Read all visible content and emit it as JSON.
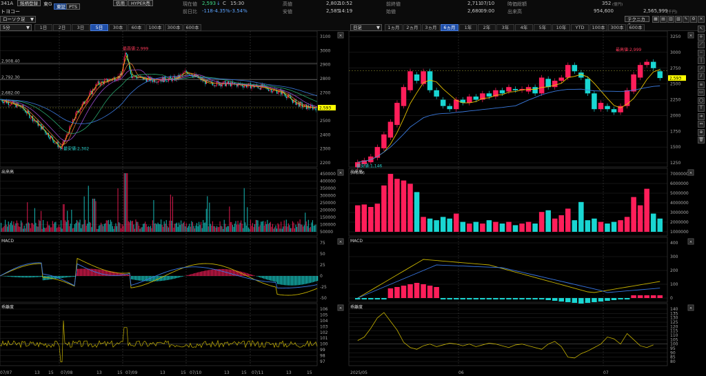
{
  "stock": {
    "code": "341A",
    "name": "トヨコー",
    "register_label": "銘柄登録",
    "market": "東G",
    "tag_blue": "東証",
    "pts_label": "PTS",
    "credit_label": "信用",
    "hyper_label": "HYPER売"
  },
  "quote": {
    "price_label": "現在値",
    "price": "2,593",
    "price_arrow": "↓",
    "c_label": "C",
    "time": "15:30",
    "change_label": "前日比",
    "change": "-118",
    "change_pct": "-4.35%",
    "change_pct2": "-3.54%",
    "high_label": "高値",
    "high": "2,802",
    "high_time": "10:52",
    "low_label": "安値",
    "low": "2,585",
    "low_time": "14:19",
    "prev_label": "前終値",
    "prev": "2,711",
    "prev_date": "07/10",
    "open_label": "始値",
    "open": "2,680",
    "open_time": "09:00",
    "mcap_label": "時価総額",
    "mcap": "352",
    "mcap_unit": "(億円)",
    "vol_label": "出来高",
    "vol": "954,600",
    "value_label": "",
    "value": "2,565,999",
    "value_unit": "(千円)",
    "tech_label": "テクニカル"
  },
  "left_panel": {
    "chart_type": "ローソク足",
    "interval": "5分",
    "tabs": [
      "1日",
      "2日",
      "3日",
      "5日",
      "30本",
      "60本",
      "100本",
      "300本",
      "600本"
    ],
    "active_tab": "5日",
    "price_panel": {
      "ticks": [
        "3100",
        "3000",
        "2900",
        "2800",
        "2700",
        "2600",
        "2500",
        "2400",
        "2300",
        "2200"
      ],
      "left_levels": [
        "2,908.40",
        "2,792.30",
        "2,682.00"
      ],
      "high_marker": "最高値:2,999",
      "low_marker": "最安値:2,302",
      "current": "2,593"
    },
    "volume_panel": {
      "title": "出来高",
      "ticks": [
        "450000",
        "400000",
        "350000",
        "300000",
        "250000",
        "200000",
        "150000",
        "100000",
        "50000"
      ]
    },
    "macd_panel": {
      "title": "MACD",
      "ticks": [
        "75",
        "50",
        "25",
        "0",
        "-25",
        "-50"
      ]
    },
    "rsi_panel": {
      "title": "乖離度",
      "ticks": [
        "106",
        "105",
        "104",
        "103",
        "102",
        "101",
        "100",
        "99",
        "98",
        "97"
      ]
    },
    "x_labels": [
      "07/07",
      "13",
      "15",
      "07/08",
      "13",
      "15",
      "07/09",
      "13",
      "15",
      "07/10",
      "13",
      "15",
      "07/11",
      "13",
      "15"
    ]
  },
  "right_panel": {
    "chart_type": "日足",
    "tabs": [
      "1ヵ月",
      "2ヵ月",
      "3ヵ月",
      "6ヵ月",
      "1年",
      "2年",
      "3年",
      "4年",
      "5年",
      "10年",
      "YTD",
      "100本",
      "300本",
      "600本"
    ],
    "active_tab": "6ヵ月",
    "price_panel": {
      "ticks": [
        "3250",
        "3000",
        "2750",
        "2500",
        "2250",
        "2000",
        "1750",
        "1500",
        "1250"
      ],
      "high_marker": "最高値:2,999",
      "low_marker": "最安値:1,146",
      "left_level": "976.46",
      "current": "2,593"
    },
    "volume_panel": {
      "title": "出来高",
      "ticks": [
        "7000000",
        "6000000",
        "5000000",
        "4000000",
        "3000000",
        "2000000",
        "1000000"
      ]
    },
    "macd_panel": {
      "title": "MACD",
      "ticks": [
        "400",
        "300",
        "200",
        "100",
        "0"
      ]
    },
    "rsi_panel": {
      "title": "乖離度",
      "ticks": [
        "140",
        "135",
        "130",
        "125",
        "120",
        "115",
        "110",
        "105",
        "100",
        "95",
        "90",
        "85",
        "80"
      ]
    },
    "x_labels": [
      "2025/05",
      "06",
      "07"
    ]
  },
  "colors": {
    "up": "#ff1e5a",
    "down": "#19d6d2",
    "macd_line": "#c8b400",
    "signal": "#3a78e6",
    "grid": "#2b2b2b",
    "price_tag": "#ffff00"
  }
}
